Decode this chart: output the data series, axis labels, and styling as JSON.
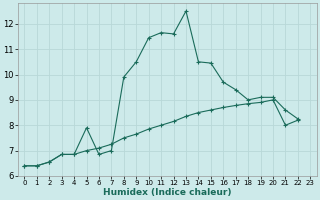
{
  "xlabel": "Humidex (Indice chaleur)",
  "bg_color": "#cdeaea",
  "grid_color": "#b8d8d8",
  "line_color": "#1a6b5a",
  "xlim": [
    -0.5,
    23.5
  ],
  "ylim": [
    6,
    12.8
  ],
  "yticks": [
    6,
    7,
    8,
    9,
    10,
    11,
    12
  ],
  "xtick_labels": [
    "0",
    "1",
    "2",
    "3",
    "4",
    "5",
    "6",
    "7",
    "8",
    "9",
    "10",
    "11",
    "12",
    "13",
    "14",
    "15",
    "16",
    "17",
    "18",
    "19",
    "20",
    "21",
    "22",
    "23"
  ],
  "series1_x": [
    0,
    1,
    2,
    3,
    4,
    5,
    6,
    7,
    8,
    9,
    10,
    11,
    12,
    13,
    14,
    15,
    16,
    17,
    18,
    19,
    20,
    21,
    22
  ],
  "series1_y": [
    6.4,
    6.4,
    6.55,
    6.85,
    6.85,
    7.9,
    6.85,
    7.0,
    9.9,
    10.5,
    11.45,
    11.65,
    11.6,
    12.5,
    10.5,
    10.45,
    9.7,
    9.4,
    9.0,
    9.1,
    9.1,
    8.6,
    8.25
  ],
  "series2_x": [
    0,
    1,
    2,
    3,
    4,
    5,
    6,
    7,
    8,
    9,
    10,
    11,
    12,
    13,
    14,
    15,
    16,
    17,
    18,
    19,
    20,
    21,
    22
  ],
  "series2_y": [
    6.4,
    6.4,
    6.55,
    6.85,
    6.85,
    7.0,
    7.1,
    7.25,
    7.5,
    7.65,
    7.85,
    8.0,
    8.15,
    8.35,
    8.5,
    8.6,
    8.7,
    8.78,
    8.85,
    8.9,
    9.0,
    8.0,
    8.2
  ]
}
